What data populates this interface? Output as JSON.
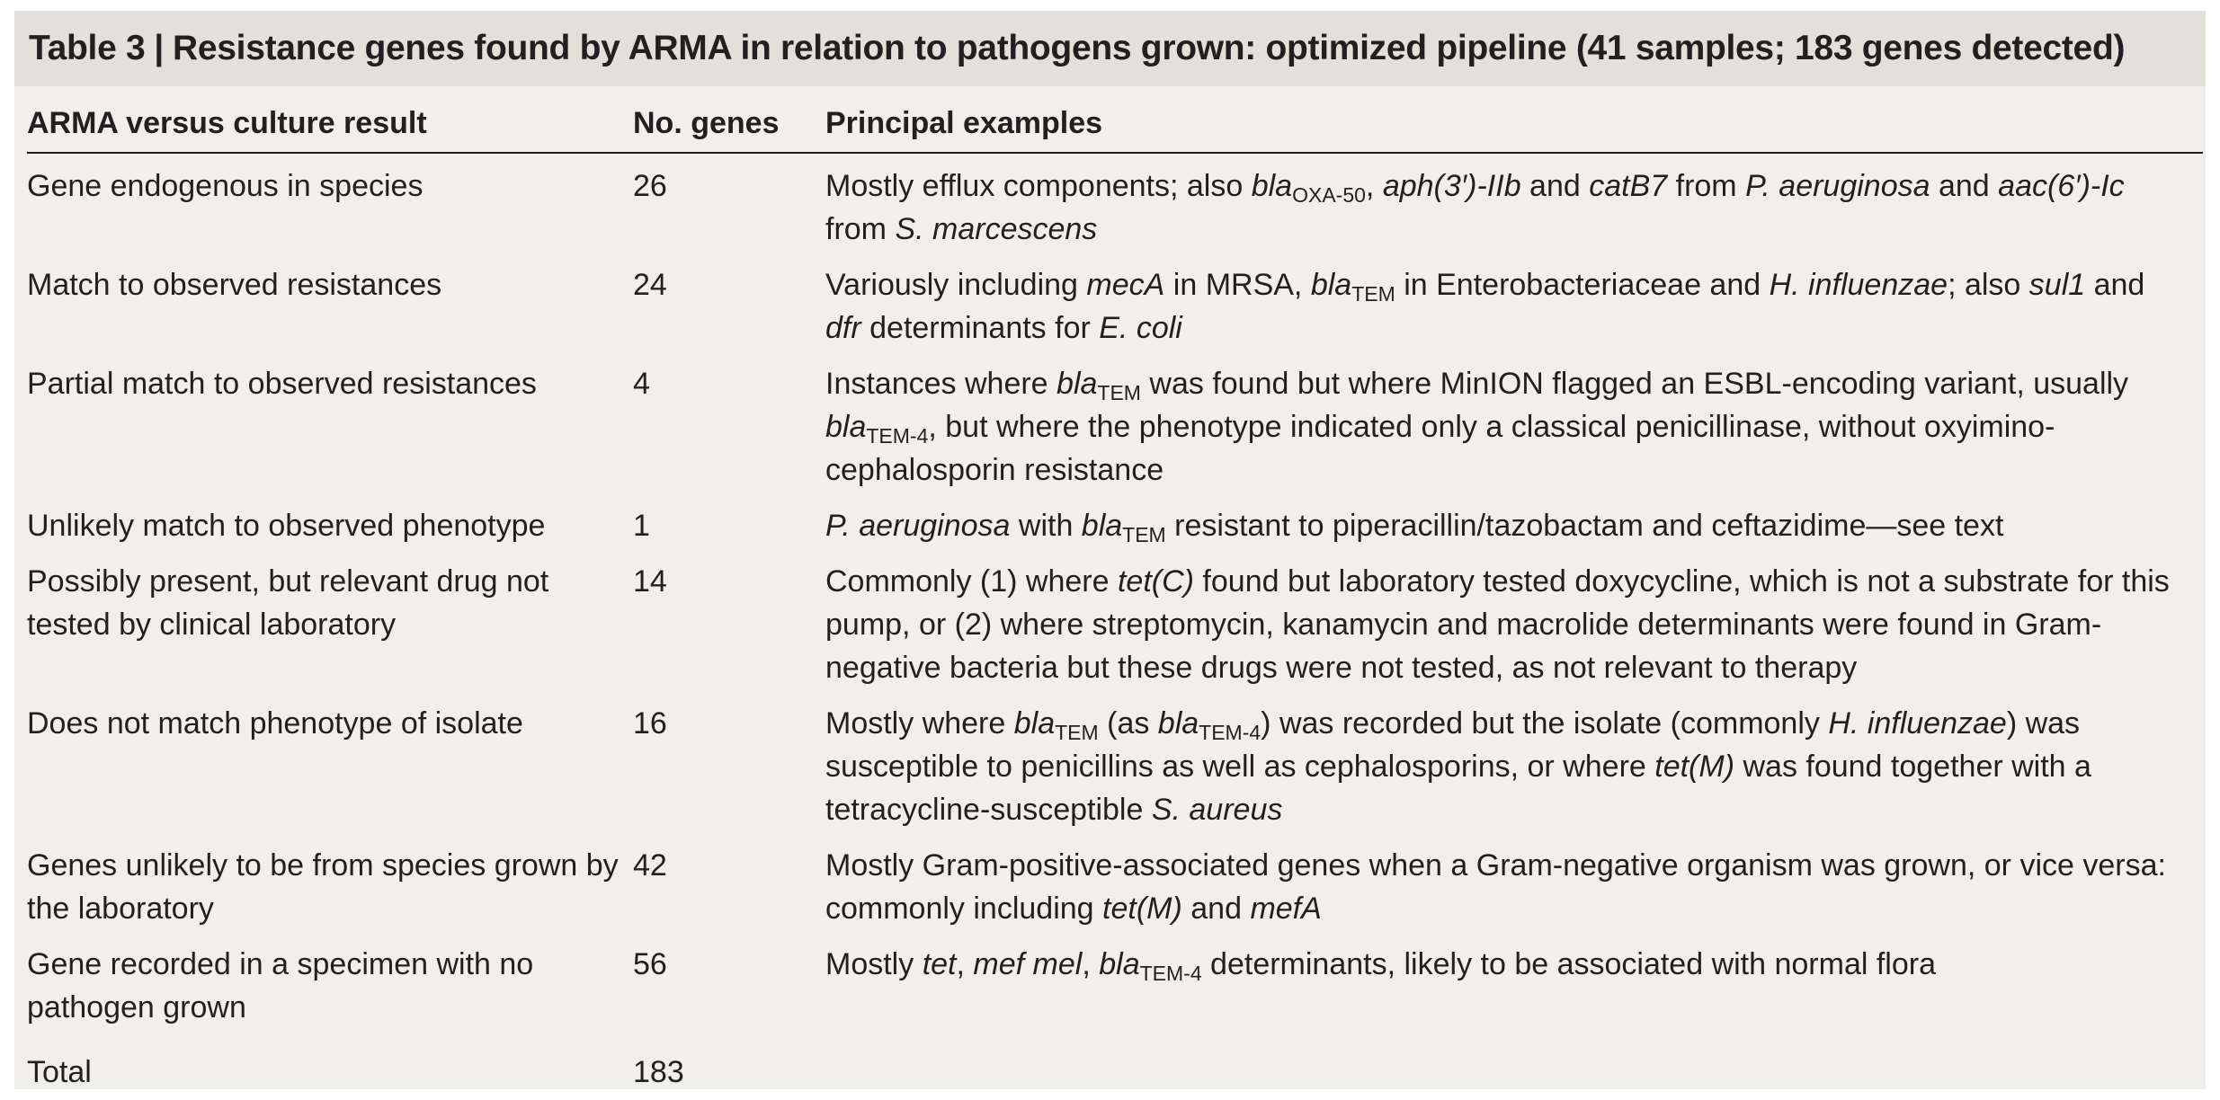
{
  "caption": {
    "label": "Table 3",
    "separator": "|",
    "title": "Resistance genes found by ARMA in relation to pathogens grown: optimized pipeline (41 samples; 183 genes detected)"
  },
  "columns": {
    "result": "ARMA versus culture result",
    "genes": "No. genes",
    "examples": "Principal examples"
  },
  "rows": [
    {
      "result": "Gene endogenous in species",
      "genes": "26",
      "examples": [
        {
          "t": "Mostly efflux components; also "
        },
        {
          "t": "bla",
          "i": true
        },
        {
          "t": "OXA-50",
          "sub": true
        },
        {
          "t": ", "
        },
        {
          "t": "aph(3′)-IIb",
          "i": true
        },
        {
          "t": " and "
        },
        {
          "t": "catB7",
          "i": true
        },
        {
          "t": " from "
        },
        {
          "t": "P. aeruginosa",
          "i": true
        },
        {
          "t": " and "
        },
        {
          "t": "aac(6′)-Ic",
          "i": true
        },
        {
          "t": " from "
        },
        {
          "t": "S. marcescens",
          "i": true
        }
      ]
    },
    {
      "result": "Match to observed resistances",
      "genes": "24",
      "examples": [
        {
          "t": "Variously including "
        },
        {
          "t": "mecA",
          "i": true
        },
        {
          "t": " in MRSA, "
        },
        {
          "t": "bla",
          "i": true
        },
        {
          "t": "TEM",
          "sub": true
        },
        {
          "t": " in Enterobacteriaceae and "
        },
        {
          "t": "H. influenzae",
          "i": true
        },
        {
          "t": "; also "
        },
        {
          "t": "sul1",
          "i": true
        },
        {
          "t": " and "
        },
        {
          "t": "dfr",
          "i": true
        },
        {
          "t": " determinants for "
        },
        {
          "t": "E. coli",
          "i": true
        }
      ]
    },
    {
      "result": "Partial match to observed resistances",
      "genes": "4",
      "examples": [
        {
          "t": "Instances where "
        },
        {
          "t": "bla",
          "i": true
        },
        {
          "t": "TEM",
          "sub": true
        },
        {
          "t": " was found but where MinION flagged an ESBL-encoding variant, usually "
        },
        {
          "t": "bla",
          "i": true
        },
        {
          "t": "TEM-4",
          "sub": true
        },
        {
          "t": ", but where the phenotype indicated only a classical penicillinase, without oxyimino-cephalosporin resistance"
        }
      ]
    },
    {
      "result": "Unlikely match to observed phenotype",
      "genes": "1",
      "examples": [
        {
          "t": "P. aeruginosa",
          "i": true
        },
        {
          "t": " with "
        },
        {
          "t": "bla",
          "i": true
        },
        {
          "t": "TEM",
          "sub": true
        },
        {
          "t": " resistant to piperacillin/tazobactam and ceftazidime—see text"
        }
      ]
    },
    {
      "result": "Possibly present, but relevant drug not tested by clinical laboratory",
      "genes": "14",
      "examples": [
        {
          "t": "Commonly (1) where "
        },
        {
          "t": "tet(C)",
          "i": true
        },
        {
          "t": " found but laboratory tested doxycycline, which is not a substrate for this pump, or (2) where streptomycin, kanamycin and macrolide determinants were found in Gram-negative bacteria but these drugs were not tested, as not relevant to therapy"
        }
      ]
    },
    {
      "result": "Does not match phenotype of isolate",
      "genes": "16",
      "examples": [
        {
          "t": "Mostly where "
        },
        {
          "t": "bla",
          "i": true
        },
        {
          "t": "TEM",
          "sub": true
        },
        {
          "t": " (as "
        },
        {
          "t": "bla",
          "i": true
        },
        {
          "t": "TEM-4",
          "sub": true
        },
        {
          "t": ") was recorded but the isolate (commonly "
        },
        {
          "t": "H. influenzae",
          "i": true
        },
        {
          "t": ") was susceptible to penicillins as well as cephalosporins, or where "
        },
        {
          "t": "tet(M)",
          "i": true
        },
        {
          "t": " was found together with a tetracycline-susceptible "
        },
        {
          "t": "S. aureus",
          "i": true
        }
      ]
    },
    {
      "result": "Genes unlikely to be from species grown by the laboratory",
      "genes": "42",
      "examples": [
        {
          "t": "Mostly Gram-positive-associated genes when a Gram-negative organism was grown, or vice versa: commonly including "
        },
        {
          "t": "tet(M)",
          "i": true
        },
        {
          "t": " and "
        },
        {
          "t": "mefA",
          "i": true
        }
      ]
    },
    {
      "result": "Gene recorded in a specimen with no pathogen grown",
      "genes": "56",
      "examples": [
        {
          "t": "Mostly "
        },
        {
          "t": "tet",
          "i": true
        },
        {
          "t": ", "
        },
        {
          "t": "mef mel",
          "i": true
        },
        {
          "t": ", "
        },
        {
          "t": "bla",
          "i": true
        },
        {
          "t": "TEM-4",
          "sub": true
        },
        {
          "t": " determinants, likely to be associated with normal flora"
        }
      ]
    }
  ],
  "total": {
    "label": "Total",
    "genes": "183"
  }
}
